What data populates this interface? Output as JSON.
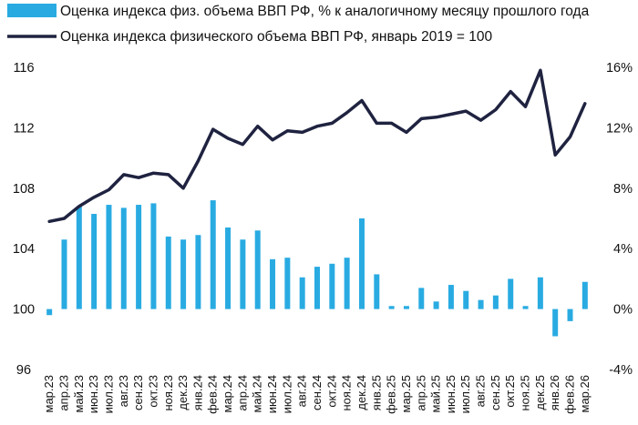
{
  "chart_data": {
    "type": "bar+line",
    "legend_position": "top-left",
    "grid": false,
    "categories": [
      "мар.23",
      "апр.23",
      "май.23",
      "июн.23",
      "июл.23",
      "авг.23",
      "сен.23",
      "окт.23",
      "ноя.23",
      "дек.23",
      "янв.24",
      "фев.24",
      "мар.24",
      "апр.24",
      "май.24",
      "июн.24",
      "июл.24",
      "авг.24",
      "сен.24",
      "окт.24",
      "ноя.24",
      "дек.24",
      "янв.25",
      "фев.25",
      "мар.25",
      "апр.25",
      "май.25",
      "июн.25",
      "июл.25",
      "авг.25",
      "сен.25",
      "окт.25",
      "ноя.25",
      "дек.25",
      "янв.26",
      "фев.26",
      "мар.26"
    ],
    "series": [
      {
        "name": "Оценка индекса физ. объема ВВП РФ, % к аналогичному месяцу прошлого года",
        "type": "bar",
        "axis": "right",
        "color": "#29ABE2",
        "values": [
          -0.4,
          4.6,
          6.8,
          6.3,
          6.9,
          6.7,
          6.9,
          7.0,
          4.8,
          4.6,
          4.9,
          7.2,
          5.4,
          4.6,
          5.2,
          3.3,
          3.4,
          2.1,
          2.8,
          3.0,
          3.4,
          6.0,
          2.3,
          0.2,
          0.2,
          1.4,
          0.5,
          1.6,
          1.2,
          0.6,
          0.9,
          2.0,
          0.2,
          2.1,
          -1.8,
          -0.8,
          1.8
        ]
      },
      {
        "name": "Оценка индекса физического объема ВВП РФ, январь 2019 = 100",
        "type": "line",
        "axis": "left",
        "color": "#1F2340",
        "values": [
          105.8,
          106.0,
          106.8,
          107.4,
          107.9,
          108.9,
          108.7,
          109.0,
          108.9,
          108.0,
          109.8,
          111.9,
          111.3,
          110.9,
          112.1,
          111.2,
          111.8,
          111.7,
          112.1,
          112.3,
          113.0,
          113.8,
          112.3,
          112.3,
          111.7,
          112.6,
          112.7,
          112.9,
          113.1,
          112.5,
          113.2,
          114.4,
          113.4,
          115.8,
          110.2,
          111.4,
          113.6
        ]
      }
    ],
    "y_left": {
      "ticks": [
        "96",
        "100",
        "104",
        "108",
        "112",
        "116"
      ],
      "ylim": [
        96,
        116
      ]
    },
    "y_right": {
      "ticks": [
        "-4%",
        "0%",
        "4%",
        "8%",
        "12%",
        "16%"
      ],
      "ylim": [
        -4,
        16
      ]
    }
  }
}
